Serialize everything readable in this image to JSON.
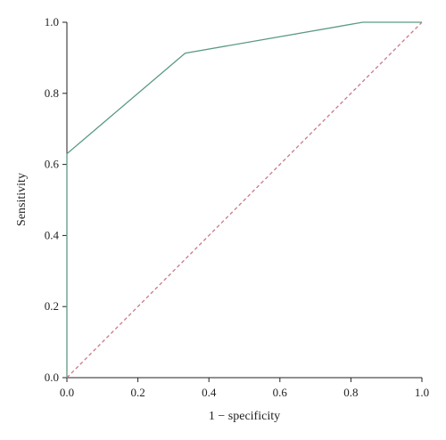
{
  "chart_data": {
    "type": "line",
    "title": "",
    "xlabel": "1 − specificity",
    "ylabel": "Sensitivity",
    "xlim": [
      0,
      1
    ],
    "ylim": [
      0,
      1
    ],
    "x_ticks": [
      "0.0",
      "0.2",
      "0.4",
      "0.6",
      "0.8",
      "1.0"
    ],
    "y_ticks": [
      "0.0",
      "0.2",
      "0.4",
      "0.6",
      "0.8",
      "1.0"
    ],
    "grid": false,
    "legend": "none",
    "series": [
      {
        "values": [
          {
            "x": 0,
            "y": 0
          },
          {
            "x": 0,
            "y": 0.63
          },
          {
            "x": 0.333,
            "y": 0.913
          },
          {
            "x": 0.833,
            "y": 1.0
          },
          {
            "x": 1.0,
            "y": 1.0
          }
        ],
        "color": "#5b9a83",
        "style": "solid"
      },
      {
        "values": [
          {
            "x": 0,
            "y": 0
          },
          {
            "x": 1,
            "y": 1
          }
        ],
        "color": "#c97a86",
        "style": "dashed"
      }
    ]
  }
}
